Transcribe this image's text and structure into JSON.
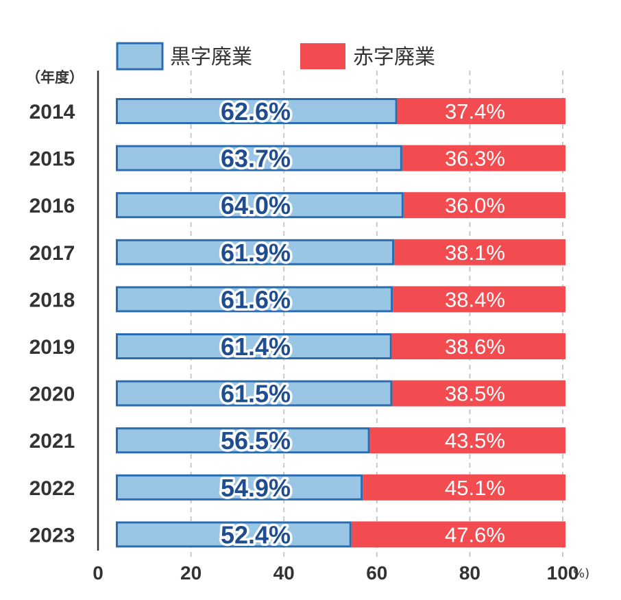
{
  "colors": {
    "profit_fill": "#9ac6e6",
    "profit_border": "#2b6cb0",
    "loss_fill": "#f24c50",
    "text": "#333333",
    "grid": "#c8c8c8"
  },
  "chart_data": {
    "type": "bar",
    "orientation": "horizontal",
    "stacked": true,
    "ylabel": "（年度）",
    "xunit": "(%)",
    "xlim": [
      0,
      100
    ],
    "xticks": [
      0,
      20,
      40,
      60,
      80,
      100
    ],
    "grid": "vertical dashed",
    "legend_position": "top",
    "categories": [
      "2014",
      "2015",
      "2016",
      "2017",
      "2018",
      "2019",
      "2020",
      "2021",
      "2022",
      "2023"
    ],
    "series": [
      {
        "name": "黒字廃業",
        "color": "#9ac6e6",
        "values": [
          62.6,
          63.7,
          64.0,
          61.9,
          61.6,
          61.4,
          61.5,
          56.5,
          54.9,
          52.4
        ],
        "labels": [
          "62.6%",
          "63.7%",
          "64.0%",
          "61.9%",
          "61.6%",
          "61.4%",
          "61.5%",
          "56.5%",
          "54.9%",
          "52.4%"
        ]
      },
      {
        "name": "赤字廃業",
        "color": "#f24c50",
        "values": [
          37.4,
          36.3,
          36.0,
          38.1,
          38.4,
          38.6,
          38.5,
          43.5,
          45.1,
          47.6
        ],
        "labels": [
          "37.4%",
          "36.3%",
          "36.0%",
          "38.1%",
          "38.4%",
          "38.6%",
          "38.5%",
          "43.5%",
          "45.1%",
          "47.6%"
        ]
      }
    ]
  }
}
